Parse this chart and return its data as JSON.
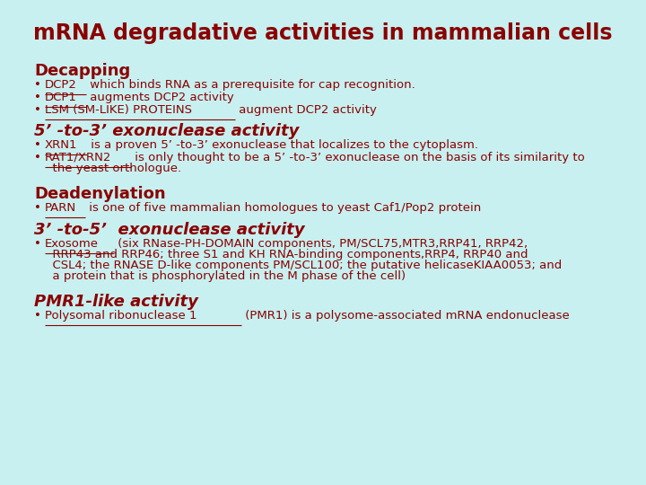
{
  "bg_color": "#c8f0f0",
  "title": "mRNA degradative activities in mammalian cells",
  "title_color": "#8b0000",
  "title_fontsize": 17,
  "heading_color": "#8b0000",
  "bullet_color": "#8b0000",
  "sections": [
    {
      "heading": "Decapping",
      "italic": false,
      "bullets": [
        {
          "underline": "DCP2",
          "rest": " which binds RNA as a prerequisite for cap recognition."
        },
        {
          "underline": "DCP1",
          "rest": " augments DCP2 activity"
        },
        {
          "underline": "LSM (SM-LIKE) PROTEINS",
          "rest": " augment DCP2 activity"
        }
      ]
    },
    {
      "heading": "5’ -to-3’ exonuclease activity",
      "italic": true,
      "bullets": [
        {
          "underline": "XRN1",
          "rest": " is a proven 5’ -to-3’ exonuclease that localizes to the cytoplasm."
        },
        {
          "underline": "RAT1/XRN2",
          "rest": " is only thought to be a 5’ -to-3’ exonuclease on the basis of its similarity to"
        },
        {
          "underline": "",
          "rest": "  the yeast orthologue."
        }
      ]
    },
    {
      "heading": "Deadenylation",
      "italic": false,
      "bullets": [
        {
          "underline": "PARN",
          "rest": " is one of five mammalian homologues to yeast Caf1/Pop2 protein"
        }
      ]
    },
    {
      "heading": "3’ -to-5’  exonuclease activity",
      "italic": true,
      "bullets": [
        {
          "underline": "Exosome",
          "rest": " (six RNase-PH-DOMAIN components, PM/SCL75,MTR3,RRP41, RRP42,"
        },
        {
          "underline": "",
          "rest": "  RRP43 and RRP46; three S1 and KH RNA-binding components,RRP4, RRP40 and"
        },
        {
          "underline": "",
          "rest": "  CSL4; the RNASE D-like components PM/SCL100; the putative helicaseKIAA0053; and"
        },
        {
          "underline": "",
          "rest": "  a protein that is phosphorylated in the M phase of the cell)"
        }
      ]
    },
    {
      "heading": "PMR1-like activity",
      "italic": true,
      "bullets": [
        {
          "underline": "Polysomal ribonuclease 1",
          "rest": " (PMR1) is a polysome-associated mRNA endonuclease"
        }
      ]
    }
  ]
}
